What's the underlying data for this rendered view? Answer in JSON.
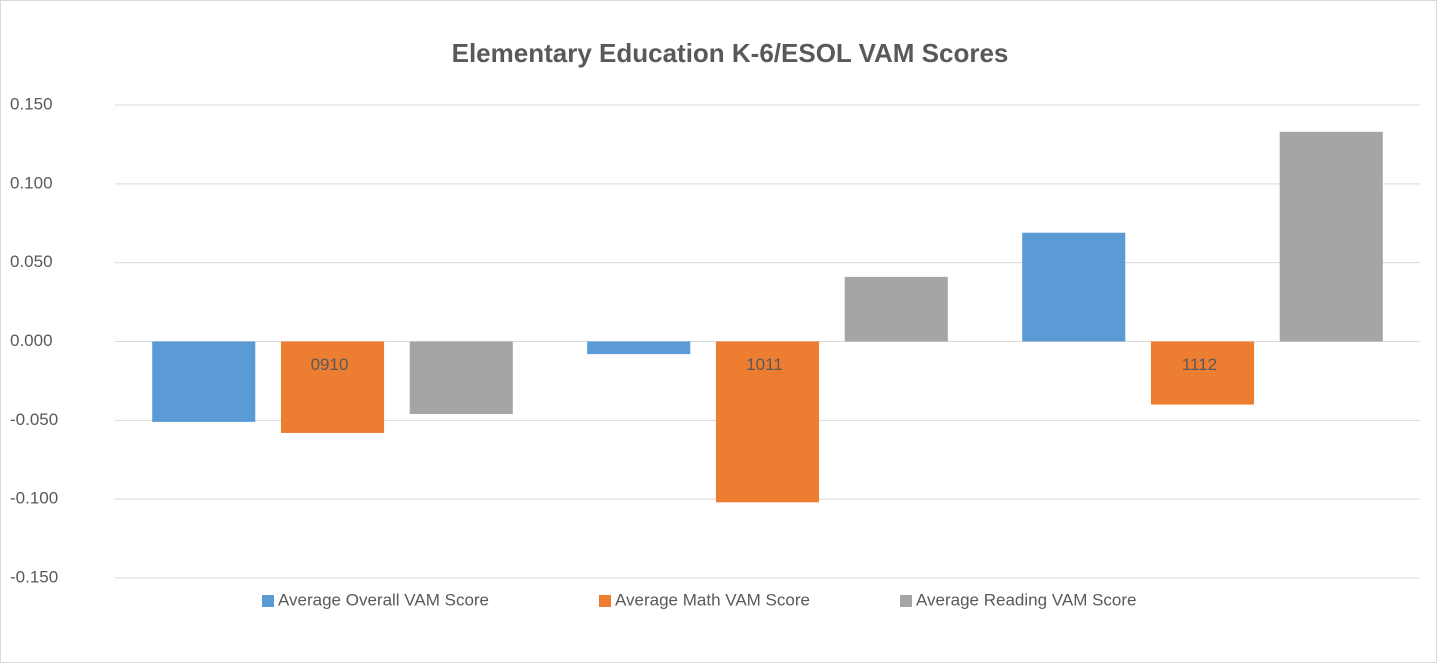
{
  "chart_data": {
    "type": "bar",
    "title": "Elementary Education K-6/ESOL VAM Scores",
    "categories": [
      "0910",
      "1011",
      "1112"
    ],
    "series": [
      {
        "name": "Average Overall VAM Score",
        "color": "#5b9bd5",
        "values": [
          -0.051,
          -0.008,
          0.069
        ]
      },
      {
        "name": "Average Math VAM Score",
        "color": "#ed7d31",
        "values": [
          -0.058,
          -0.102,
          -0.04
        ]
      },
      {
        "name": "Average Reading VAM Score",
        "color": "#a5a5a5",
        "values": [
          -0.046,
          0.041,
          0.133
        ]
      }
    ],
    "ylim": [
      -0.15,
      0.15
    ],
    "yticks": [
      {
        "value": 0.15,
        "label": "0.150"
      },
      {
        "value": 0.1,
        "label": "0.100"
      },
      {
        "value": 0.05,
        "label": "0.050"
      },
      {
        "value": 0,
        "label": "0.000"
      },
      {
        "value": -0.05,
        "label": "-0.050"
      },
      {
        "value": -0.1,
        "label": "-0.100"
      },
      {
        "value": -0.15,
        "label": "-0.150"
      }
    ],
    "grid": true,
    "legend": "bottom"
  }
}
